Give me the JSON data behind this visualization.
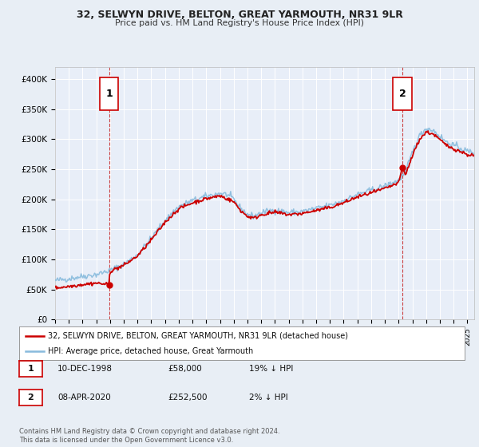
{
  "title": "32, SELWYN DRIVE, BELTON, GREAT YARMOUTH, NR31 9LR",
  "subtitle": "Price paid vs. HM Land Registry's House Price Index (HPI)",
  "legend_line1": "32, SELWYN DRIVE, BELTON, GREAT YARMOUTH, NR31 9LR (detached house)",
  "legend_line2": "HPI: Average price, detached house, Great Yarmouth",
  "annotation1_label": "1",
  "annotation1_date": "10-DEC-1998",
  "annotation1_price": "£58,000",
  "annotation1_hpi": "19% ↓ HPI",
  "annotation2_label": "2",
  "annotation2_date": "08-APR-2020",
  "annotation2_price": "£252,500",
  "annotation2_hpi": "2% ↓ HPI",
  "footnote": "Contains HM Land Registry data © Crown copyright and database right 2024.\nThis data is licensed under the Open Government Licence v3.0.",
  "price_color": "#cc0000",
  "hpi_color": "#88bbdd",
  "background_color": "#e8eef5",
  "plot_bg_color": "#e8eef8",
  "annotation_box_color": "#cc0000",
  "ylim": [
    0,
    420000
  ],
  "yticks": [
    0,
    50000,
    100000,
    150000,
    200000,
    250000,
    300000,
    350000,
    400000
  ],
  "ytick_labels": [
    "£0",
    "£50K",
    "£100K",
    "£150K",
    "£200K",
    "£250K",
    "£300K",
    "£350K",
    "£400K"
  ],
  "sale1_x": 1998.94,
  "sale1_y": 58000,
  "sale2_x": 2020.27,
  "sale2_y": 252500,
  "xmin": 1995,
  "xmax": 2025.5
}
